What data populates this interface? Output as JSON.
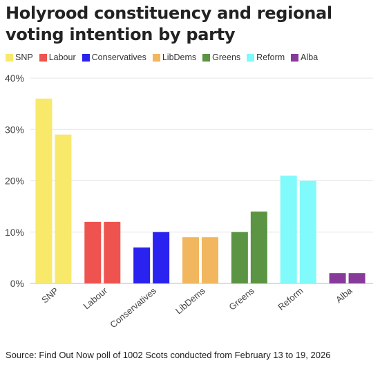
{
  "title": "Holyrood constituency and regional voting intention by party",
  "source": "Source: Find Out Now poll of 1002 Scots conducted from February 13 to 19, 2026",
  "chart_data": {
    "type": "bar",
    "categories": [
      "SNP",
      "Labour",
      "Conservatives",
      "LibDems",
      "Greens",
      "Reform",
      "Alba"
    ],
    "colors": [
      "#f8e96b",
      "#ef5350",
      "#2a22ee",
      "#f2b65e",
      "#5b9443",
      "#80fafb",
      "#883a9b"
    ],
    "series": [
      {
        "values": [
          36,
          12,
          7,
          9,
          10,
          21,
          2
        ]
      },
      {
        "values": [
          29,
          12,
          10,
          9,
          14,
          20,
          2
        ]
      }
    ],
    "ylim": [
      0,
      40
    ],
    "yticks": [
      "0%",
      "10%",
      "20%",
      "30%",
      "40%"
    ],
    "grid": true,
    "legend_position": "top-left"
  }
}
